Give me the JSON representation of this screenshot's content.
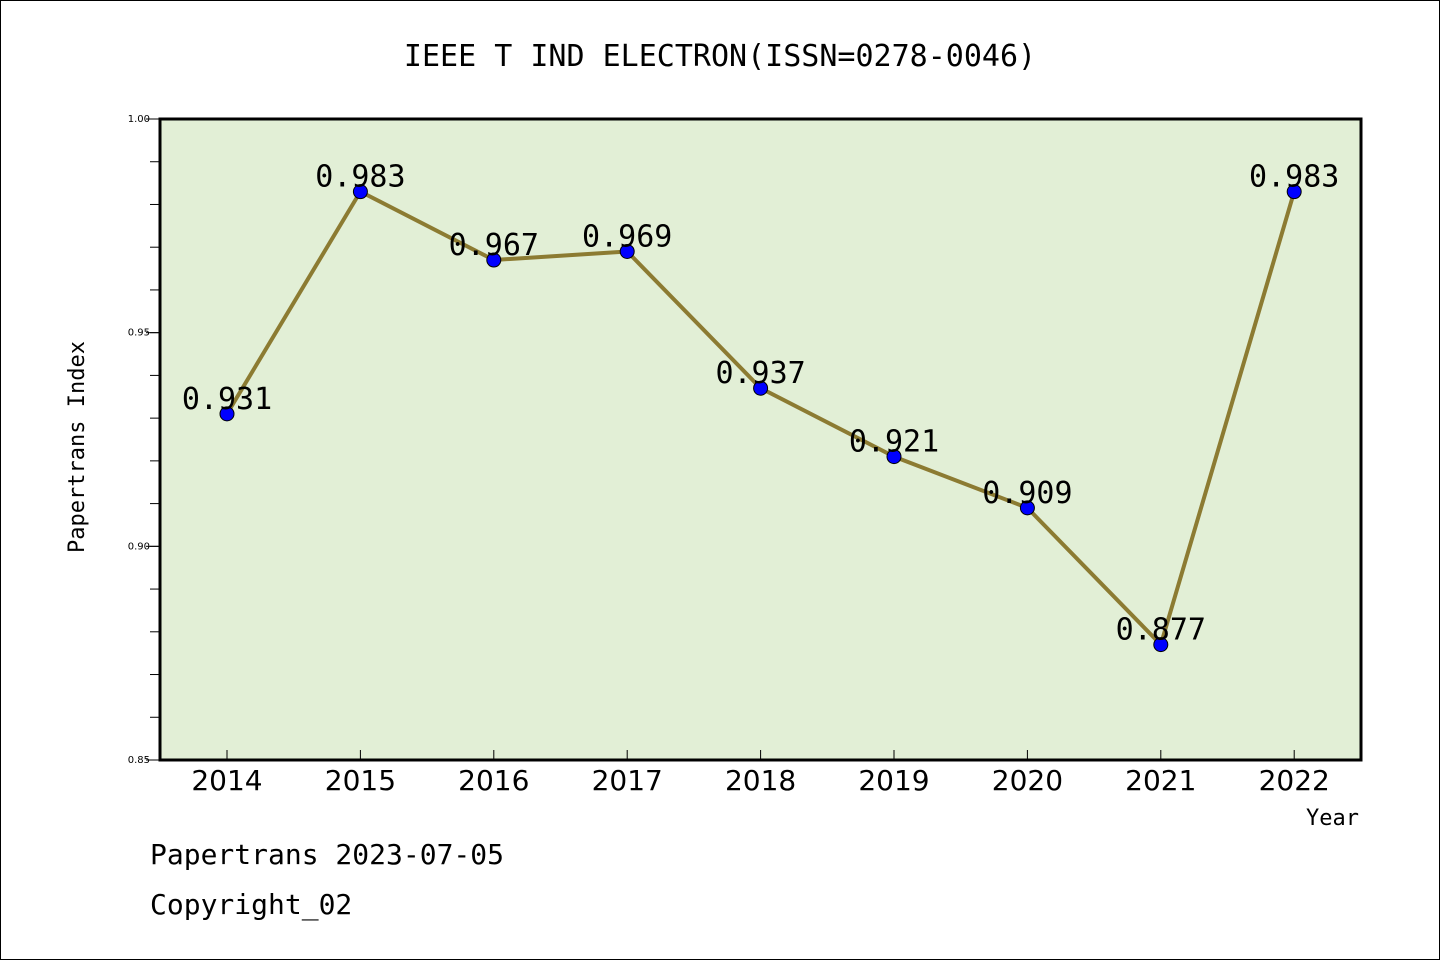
{
  "chart_data": {
    "type": "line",
    "title": "IEEE T IND ELECTRON(ISSN=0278-0046)",
    "xlabel": "Year",
    "ylabel": "Papertrans Index",
    "categories": [
      "2014",
      "2015",
      "2016",
      "2017",
      "2018",
      "2019",
      "2020",
      "2021",
      "2022"
    ],
    "values": [
      0.931,
      0.983,
      0.967,
      0.969,
      0.937,
      0.921,
      0.909,
      0.877,
      0.983
    ],
    "data_labels": [
      "0.931",
      "0.983",
      "0.967",
      "0.969",
      "0.937",
      "0.921",
      "0.909",
      "0.877",
      "0.983"
    ],
    "ylim": [
      0.85,
      1.0
    ],
    "yticks": [
      0.85,
      0.9,
      0.95,
      1.0
    ],
    "ytick_labels": [
      "0.85",
      "0.90",
      "0.95",
      "1.00"
    ],
    "grid": false,
    "legend": "none",
    "colors": {
      "plot_background": "#e2efd6",
      "line": "#8c7b32",
      "marker": "#0000ff"
    }
  },
  "footer": {
    "line1": "Papertrans 2023-07-05",
    "line2": "Copyright_02"
  }
}
